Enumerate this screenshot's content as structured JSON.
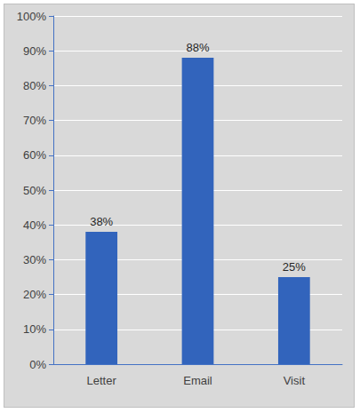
{
  "chart_data": {
    "type": "bar",
    "categories": [
      "Letter",
      "Email",
      "Visit"
    ],
    "values": [
      38,
      88,
      25
    ],
    "value_labels": [
      "38%",
      "88%",
      "25%"
    ],
    "color": "#3264bc",
    "ylim": [
      0,
      100
    ],
    "yticks": [
      {
        "value": 0,
        "label": "0%"
      },
      {
        "value": 10,
        "label": "10%"
      },
      {
        "value": 20,
        "label": "20%"
      },
      {
        "value": 30,
        "label": "30%"
      },
      {
        "value": 40,
        "label": "40%"
      },
      {
        "value": 50,
        "label": "50%"
      },
      {
        "value": 60,
        "label": "60%"
      },
      {
        "value": 70,
        "label": "70%"
      },
      {
        "value": 80,
        "label": "80%"
      },
      {
        "value": 90,
        "label": "90%"
      },
      {
        "value": 100,
        "label": "100%"
      }
    ],
    "grid": true,
    "data_labels": true
  }
}
